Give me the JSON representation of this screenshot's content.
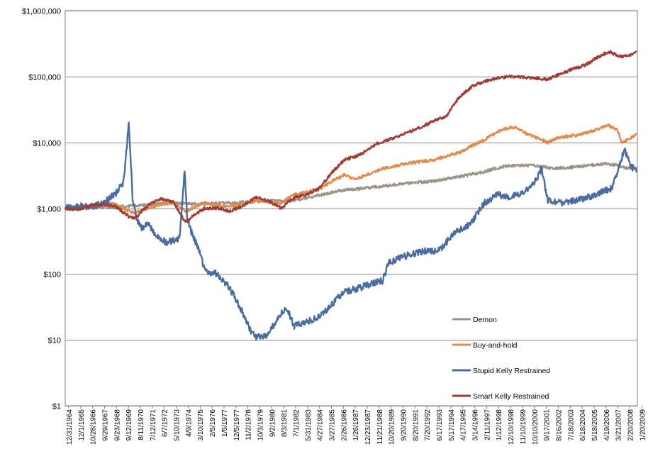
{
  "chart_data": {
    "type": "line",
    "title": "",
    "xlabel": "",
    "ylabel": "",
    "y_scale": "log",
    "ylim": [
      1,
      1000000
    ],
    "y_ticks": [
      1,
      10,
      100,
      1000,
      10000,
      100000,
      1000000
    ],
    "y_tick_labels": [
      "$1",
      "$10",
      "$100",
      "$1,000",
      "$10,000",
      "$100,000",
      "$1,000,000"
    ],
    "x_tick_labels": [
      "12/31/1964",
      "12/1/1965",
      "10/28/1966",
      "9/29/1967",
      "9/23/1968",
      "9/12/1969",
      "8/11/1970",
      "7/12/1971",
      "6/7/1972",
      "5/10/1973",
      "4/9/1974",
      "3/10/1975",
      "2/5/1976",
      "1/5/1977",
      "12/5/1977",
      "11/2/1978",
      "10/3/1979",
      "9/2/1980",
      "8/3/1981",
      "7/1/1982",
      "5/31/1983",
      "4/27/1984",
      "3/27/1985",
      "2/26/1986",
      "1/26/1987",
      "12/23/1987",
      "11/21/1988",
      "10/20/1989",
      "9/20/1990",
      "8/20/1991",
      "7/20/1992",
      "6/17/1993",
      "5/17/1994",
      "4/17/1995",
      "3/14/1996",
      "2/11/1997",
      "1/12/1998",
      "12/10/1998",
      "11/10/1999",
      "10/10/2000",
      "9/17/2001",
      "8/16/2002",
      "7/18/2003",
      "6/18/2004",
      "5/18/2005",
      "4/19/2006",
      "3/21/2007",
      "2/20/2008",
      "1/20/2009"
    ],
    "grid": true,
    "legend_position": "lower-right inside",
    "x_unit": "year",
    "series": [
      {
        "name": "Demon",
        "color": "#9e9386",
        "x": [
          1965.0,
          1967.0,
          1969.0,
          1970.5,
          1972.0,
          1973.5,
          1975.0,
          1976.5,
          1978.0,
          1979.5,
          1981.0,
          1982.5,
          1984.0,
          1985.5,
          1987.0,
          1988.5,
          1990.0,
          1992.0,
          1994.0,
          1996.0,
          1998.0,
          1999.5,
          2001.0,
          2002.5,
          2003.5,
          2005.0,
          2006.5,
          2007.5,
          2008.5,
          2009.0,
          2010.0
        ],
        "y": [
          1000,
          1020,
          1050,
          1080,
          1150,
          1220,
          1150,
          1180,
          1200,
          1250,
          1300,
          1280,
          1420,
          1650,
          1900,
          2000,
          2150,
          2400,
          2600,
          3000,
          3600,
          4300,
          4500,
          4300,
          4000,
          4200,
          4500,
          4700,
          4500,
          4100,
          4000
        ]
      },
      {
        "name": "Buy-and-hold",
        "color": "#e08b4f",
        "x": [
          1965.0,
          1966.0,
          1967.0,
          1968.0,
          1969.0,
          1970.0,
          1970.5,
          1971.5,
          1972.5,
          1973.5,
          1974.5,
          1975.0,
          1976.0,
          1977.0,
          1978.0,
          1979.0,
          1980.0,
          1981.0,
          1982.0,
          1983.0,
          1984.0,
          1985.0,
          1986.0,
          1987.0,
          1987.8,
          1988.5,
          1990.0,
          1992.0,
          1994.0,
          1996.0,
          1998.0,
          1999.5,
          2000.5,
          2001.5,
          2002.5,
          2003.0,
          2004.0,
          2005.5,
          2007.0,
          2007.8,
          2008.5,
          2008.8,
          2009.3,
          2010.0
        ],
        "y": [
          1000,
          1050,
          1100,
          1150,
          1150,
          900,
          850,
          1000,
          1150,
          1200,
          900,
          1000,
          1200,
          1100,
          1050,
          1150,
          1300,
          1250,
          1200,
          1600,
          1750,
          1950,
          2600,
          3200,
          2700,
          3100,
          4000,
          4800,
          5400,
          7000,
          11000,
          16000,
          17000,
          13000,
          11000,
          10000,
          12000,
          13000,
          16000,
          18000,
          15000,
          10000,
          11000,
          13000
        ]
      },
      {
        "name": "Stupid Kelly Restrained",
        "color": "#4a6d9e",
        "x": [
          1965.0,
          1966.0,
          1967.0,
          1968.0,
          1969.0,
          1969.6,
          1970.0,
          1970.3,
          1970.6,
          1971.0,
          1971.5,
          1972.0,
          1972.5,
          1973.0,
          1974.0,
          1974.4,
          1974.6,
          1975.0,
          1975.5,
          1976.0,
          1977.0,
          1978.0,
          1979.0,
          1979.5,
          1980.0,
          1981.0,
          1981.5,
          1982.0,
          1982.5,
          1983.0,
          1984.0,
          1985.0,
          1986.0,
          1987.0,
          1988.0,
          1989.0,
          1990.0,
          1990.5,
          1991.5,
          1993.0,
          1994.5,
          1995.5,
          1997.0,
          1998.0,
          1999.0,
          2000.0,
          2001.0,
          2002.0,
          2002.5,
          2003.0,
          2004.0,
          2005.0,
          2006.0,
          2007.0,
          2008.0,
          2008.5,
          2009.0,
          2009.5,
          2010.0
        ],
        "y": [
          1000,
          1100,
          1050,
          1200,
          1700,
          2500,
          20000,
          1500,
          700,
          500,
          600,
          400,
          350,
          300,
          350,
          4000,
          700,
          400,
          250,
          110,
          100,
          60,
          25,
          15,
          11,
          12,
          18,
          25,
          30,
          16,
          19,
          22,
          35,
          55,
          60,
          70,
          80,
          150,
          180,
          220,
          230,
          400,
          600,
          1200,
          1600,
          1500,
          1700,
          2500,
          4000,
          1300,
          1200,
          1300,
          1400,
          1700,
          2000,
          3500,
          8000,
          4500,
          3500
        ]
      },
      {
        "name": "Smart Kelly Restrained",
        "color": "#9e3d33",
        "x": [
          1965.0,
          1966.0,
          1967.0,
          1968.0,
          1969.0,
          1970.0,
          1970.5,
          1971.5,
          1972.5,
          1973.5,
          1974.5,
          1975.0,
          1976.0,
          1977.0,
          1978.0,
          1979.0,
          1980.0,
          1981.0,
          1982.0,
          1983.0,
          1984.0,
          1985.0,
          1986.0,
          1987.0,
          1987.8,
          1988.5,
          1989.5,
          1990.5,
          1991.5,
          1993.0,
          1994.0,
          1995.0,
          1996.0,
          1997.0,
          1998.0,
          1999.0,
          2000.0,
          2001.0,
          2002.0,
          2003.0,
          2004.0,
          2005.0,
          2006.0,
          2007.0,
          2007.8,
          2008.5,
          2009.0,
          2009.5,
          2010.0
        ],
        "y": [
          1000,
          950,
          1100,
          1150,
          1050,
          750,
          700,
          1100,
          1400,
          1250,
          600,
          750,
          1000,
          1000,
          900,
          1100,
          1450,
          1300,
          1000,
          1450,
          1600,
          2000,
          3500,
          5500,
          6000,
          7000,
          9500,
          11000,
          13000,
          17000,
          21000,
          25000,
          48000,
          70000,
          85000,
          95000,
          100000,
          97000,
          95000,
          90000,
          110000,
          130000,
          150000,
          200000,
          240000,
          210000,
          200000,
          210000,
          240000
        ]
      }
    ]
  }
}
